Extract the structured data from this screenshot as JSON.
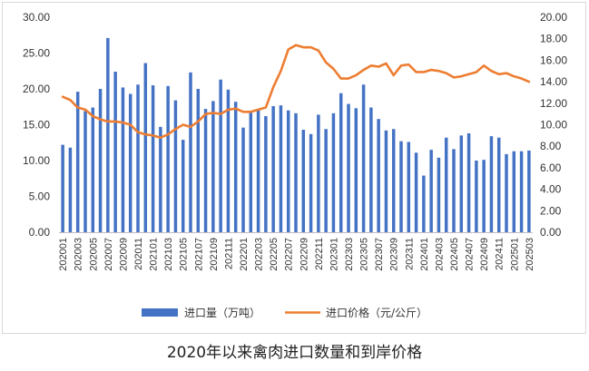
{
  "caption": "2020年以来禽肉进口数量和到岸价格",
  "chart_data": {
    "type": "bar+line",
    "categories": [
      "202001",
      "202002",
      "202003",
      "202004",
      "202005",
      "202006",
      "202007",
      "202008",
      "202009",
      "202010",
      "202011",
      "202012",
      "202101",
      "202102",
      "202103",
      "202104",
      "202105",
      "202106",
      "202107",
      "202108",
      "202109",
      "202110",
      "202111",
      "202112",
      "202201",
      "202202",
      "202203",
      "202204",
      "202205",
      "202206",
      "202207",
      "202208",
      "202209",
      "202210",
      "202211",
      "202212",
      "202301",
      "202302",
      "202303",
      "202304",
      "202305",
      "202306",
      "202307",
      "202308",
      "202309",
      "202310",
      "202311",
      "202312",
      "202401",
      "202402",
      "202403",
      "202404",
      "202405",
      "202406",
      "202407",
      "202408",
      "202409",
      "202410",
      "202411",
      "202412",
      "202501",
      "202502",
      "202503"
    ],
    "x_tick_labels": [
      "202001",
      "202003",
      "202005",
      "202007",
      "202009",
      "202011",
      "202101",
      "202103",
      "202105",
      "202107",
      "202109",
      "202111",
      "202201",
      "202203",
      "202205",
      "202207",
      "202209",
      "202211",
      "202301",
      "202303",
      "202305",
      "202307",
      "202309",
      "202311",
      "202401",
      "202403",
      "202405",
      "202407",
      "202409",
      "202411",
      "202501",
      "202503"
    ],
    "series": [
      {
        "name": "进口量（万吨）",
        "type": "bar",
        "axis": "left",
        "color": "#4472c4",
        "values": [
          12.2,
          11.8,
          19.6,
          16.9,
          17.4,
          20.0,
          27.1,
          22.4,
          20.2,
          19.3,
          20.6,
          23.6,
          20.5,
          14.7,
          20.4,
          18.4,
          12.9,
          22.3,
          20.0,
          17.2,
          18.3,
          21.3,
          19.9,
          18.2,
          14.6,
          16.7,
          17.2,
          16.2,
          17.6,
          17.7,
          17.0,
          16.6,
          14.3,
          13.7,
          16.4,
          14.4,
          16.6,
          19.4,
          17.9,
          17.3,
          20.6,
          17.4,
          15.8,
          14.2,
          14.4,
          12.7,
          12.6,
          11.1,
          7.9,
          11.5,
          10.4,
          13.2,
          11.6,
          13.5,
          13.8,
          10.0,
          10.1,
          13.4,
          13.2,
          10.9,
          11.3,
          11.3,
          11.4
        ]
      },
      {
        "name": "进口价格（元/公斤）",
        "type": "line",
        "axis": "right",
        "color": "#ed7d31",
        "values": [
          12.6,
          12.3,
          11.6,
          11.4,
          10.8,
          10.5,
          10.3,
          10.3,
          10.2,
          10.0,
          9.3,
          9.1,
          9.0,
          8.8,
          9.1,
          9.6,
          10.0,
          9.8,
          10.3,
          11.0,
          11.1,
          11.0,
          11.4,
          11.5,
          11.2,
          11.2,
          11.4,
          11.6,
          13.5,
          15.0,
          17.0,
          17.4,
          17.2,
          17.2,
          16.9,
          15.8,
          15.2,
          14.3,
          14.3,
          14.6,
          15.1,
          15.5,
          15.4,
          15.7,
          14.6,
          15.5,
          15.6,
          14.9,
          14.9,
          15.1,
          15.0,
          14.8,
          14.4,
          14.5,
          14.7,
          14.9,
          15.5,
          15.0,
          14.7,
          14.8,
          14.5,
          14.3,
          14.0
        ]
      }
    ],
    "y_left": {
      "min": 0,
      "max": 30,
      "step": 5,
      "tick_labels": [
        "0.00",
        "5.00",
        "10.00",
        "15.00",
        "20.00",
        "25.00",
        "30.00"
      ]
    },
    "y_right": {
      "min": 0,
      "max": 20,
      "step": 2,
      "tick_labels": [
        "0.00",
        "2.00",
        "4.00",
        "6.00",
        "8.00",
        "10.00",
        "12.00",
        "14.00",
        "16.00",
        "18.00",
        "20.00"
      ]
    },
    "grid": false,
    "legend_position": "bottom"
  }
}
